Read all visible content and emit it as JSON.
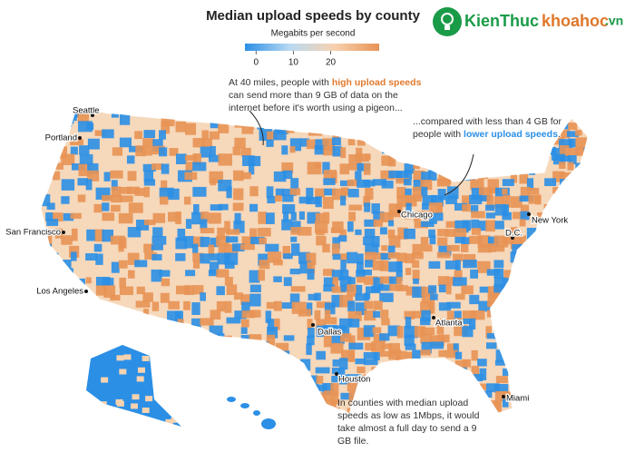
{
  "title": "Median upload speeds by county",
  "legend": {
    "subtitle": "Megabits per second",
    "lim": [
      -3,
      33
    ],
    "ticks": [
      0,
      10,
      20
    ],
    "colors": [
      "#2b8fe6",
      "#b9d9f2",
      "#f7d2b0",
      "#e89355"
    ]
  },
  "annotations": [
    {
      "before": "At 40 miles, people with ",
      "highlight": "high upload speeds",
      "after": " can send more than 9 GB of data on the internet before it's worth using a pigeon...",
      "color": "#e07a2e"
    },
    {
      "before": "...compared with less than 4 GB for people with ",
      "highlight": "lower upload speeds",
      "after": ".",
      "color": "#2b8fe6"
    },
    {
      "before": "In counties with median upload speeds as low as 1Mbps, it would take almost a full day to send a 9 GB file.",
      "highlight": "",
      "after": "",
      "color": "#333333"
    }
  ],
  "cities": [
    "Seattle",
    "Portland",
    "San Francisco",
    "Los Angeles",
    "Dallas",
    "Houston",
    "Chicago",
    "Atlanta",
    "Miami",
    "New York",
    "D.C."
  ],
  "logo": {
    "brand": "KienThuc",
    "site": "khoahoc",
    "tld": ".vn"
  }
}
